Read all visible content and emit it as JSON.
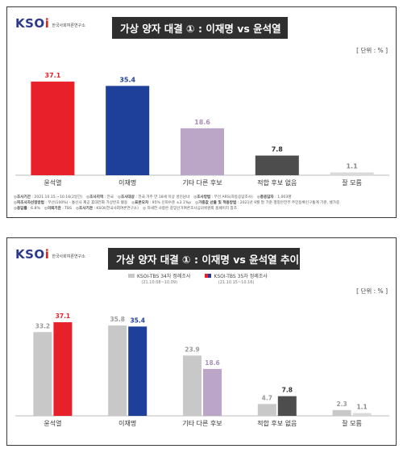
{
  "logo": {
    "mark": "KSO",
    "mark_i": "i",
    "subtitle": "한국사회여론연구소"
  },
  "panel1": {
    "title": "가상  양자 대결 ① : 이재명 vs 윤석열",
    "unit": "[ 단위 : % ]",
    "notes": [
      [
        {
          "key": "조사기간",
          "value": "2021.10.15.~10.16(2일간)"
        },
        {
          "key": "조사지역",
          "value": "전국"
        },
        {
          "key": "조사대상",
          "value": "전국 거주 만 18세 이상 성인남녀"
        },
        {
          "key": "조사방법",
          "value": "무선 ARS(자동응답조사)"
        },
        {
          "key": "총응답자",
          "value": "1,003명"
        }
      ],
      [
        {
          "key": "피조사자선정방법",
          "value": "무선(100%) - 통신사 제공 휴대전화 가상번호 활용"
        },
        {
          "key": "표본오차",
          "value": "95% 신뢰수준 ±3.1%p"
        },
        {
          "key": "가중값 산출 및 적용방법",
          "value": "2021년 9월 말 기준 행정안전부 주민등록인구통계 기준, 셀가중"
        }
      ],
      [
        {
          "key": "응답률",
          "value": "6.8%"
        },
        {
          "key": "의뢰기관",
          "value": "TBS"
        },
        {
          "key": "조사기관",
          "value": "KSOI(한국사회여론연구소)"
        },
        {
          "key": "",
          "value": "자세한 사항은 중앙선거여론조사심의위원회 홈페이지 참조"
        }
      ]
    ]
  },
  "panel2": {
    "title": "가상  양자 대결 ① : 이재명 vs 윤석열 추이",
    "unit": "[ 단위 : % ]",
    "legend": [
      {
        "label": "KSOI-TBS 34차 정례조사",
        "sub": "(21.10.08~10.09)",
        "color": "#c8c8c8"
      },
      {
        "label": "KSOI-TBS 35차 정례조사",
        "sub": "(21.10.15~10.16)",
        "color": "#2b3a8f"
      }
    ]
  },
  "chart_data": [
    {
      "type": "bar",
      "categories": [
        "윤석열",
        "이재명",
        "기타 다른 후보",
        "적합 후보 없음",
        "잘 모름"
      ],
      "values": [
        37.1,
        35.4,
        18.6,
        7.8,
        1.1
      ],
      "colors": [
        "#e8202a",
        "#1e3f9a",
        "#bca6c8",
        "#4d4d4d",
        "#d9d9d9"
      ],
      "label_colors": [
        "#e8202a",
        "#1e3f9a",
        "#a98fb8",
        "#333333",
        "#888888"
      ],
      "ylim": [
        0,
        40
      ]
    },
    {
      "type": "bar",
      "categories": [
        "윤석열",
        "이재명",
        "기타 다른 후보",
        "적합 후보 없음",
        "잘 모름"
      ],
      "series": [
        {
          "name": "KSOI-TBS 34차 정례조사",
          "values": [
            33.2,
            35.8,
            23.9,
            4.7,
            2.3
          ],
          "color": "#c8c8c8"
        },
        {
          "name": "KSOI-TBS 35차 정례조사",
          "values": [
            37.1,
            35.4,
            18.6,
            7.8,
            1.1
          ],
          "colors": [
            "#e8202a",
            "#1e3f9a",
            "#bca6c8",
            "#4d4d4d",
            "#d9d9d9"
          ]
        }
      ],
      "label_colors": [
        "#e8202a",
        "#1e3f9a",
        "#a98fb8",
        "#333333",
        "#888888"
      ],
      "ylim": [
        0,
        40
      ]
    }
  ]
}
